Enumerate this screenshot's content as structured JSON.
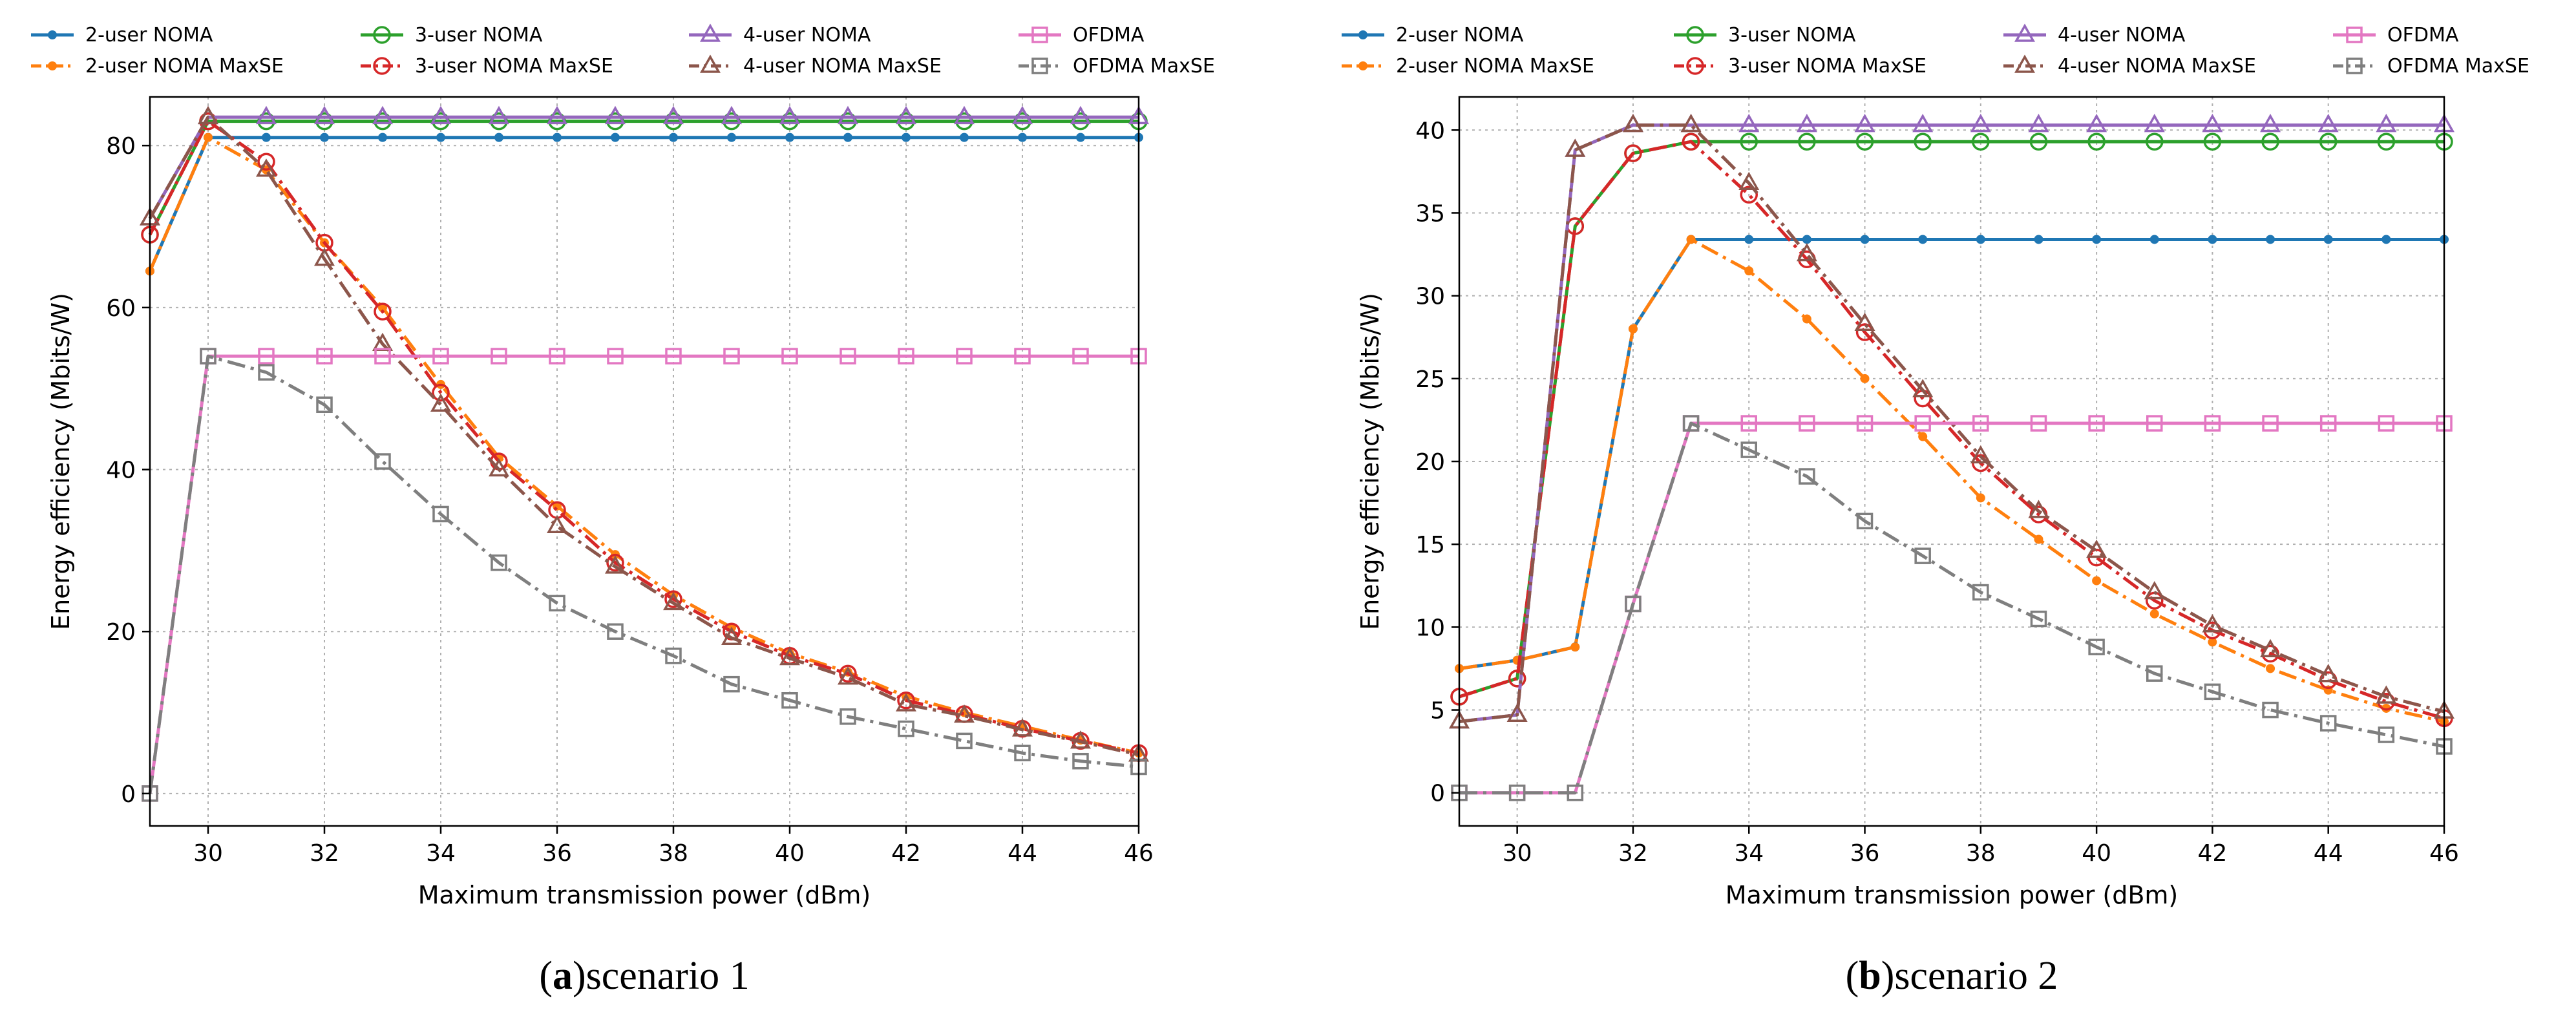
{
  "chart_data": [
    {
      "type": "line",
      "panel_letter": "a",
      "caption_left": "(",
      "caption_right": ")",
      "caption_text": "scenario 1",
      "xlabel": "Maximum transmission power (dBm)",
      "ylabel": "Energy efficiency (Mbits/W)",
      "xlim": [
        29,
        46
      ],
      "ylim": [
        -4,
        86
      ],
      "xticks": [
        30,
        32,
        34,
        36,
        38,
        40,
        42,
        44,
        46
      ],
      "yticks": [
        0,
        20,
        40,
        60,
        80
      ],
      "grid": true,
      "legend_position": "top",
      "x": [
        29,
        30,
        31,
        32,
        33,
        34,
        35,
        36,
        37,
        38,
        39,
        40,
        41,
        42,
        43,
        44,
        45,
        46
      ],
      "series": [
        {
          "name": "2-user NOMA",
          "color": "#1f77b4",
          "style": "solid",
          "marker": "dot",
          "values": [
            64.5,
            81,
            81,
            81,
            81,
            81,
            81,
            81,
            81,
            81,
            81,
            81,
            81,
            81,
            81,
            81,
            81,
            81
          ]
        },
        {
          "name": "2-user NOMA MaxSE",
          "color": "#ff7f0e",
          "style": "dashdot",
          "marker": "dot",
          "values": [
            64.5,
            81,
            77,
            68,
            60,
            50.5,
            41.5,
            35.5,
            29.5,
            24.5,
            20.5,
            17.3,
            15,
            12,
            10,
            8.3,
            6.6,
            5
          ]
        },
        {
          "name": "3-user NOMA",
          "color": "#2ca02c",
          "style": "solid",
          "marker": "circle",
          "values": [
            69,
            83,
            83,
            83,
            83,
            83,
            83,
            83,
            83,
            83,
            83,
            83,
            83,
            83,
            83,
            83,
            83,
            83
          ]
        },
        {
          "name": "3-user NOMA MaxSE",
          "color": "#d62728",
          "style": "dashdot",
          "marker": "circle",
          "values": [
            69,
            83,
            78,
            68,
            59.5,
            49.5,
            41,
            35,
            28.5,
            24,
            20,
            17,
            14.8,
            11.5,
            9.8,
            8,
            6.5,
            5
          ]
        },
        {
          "name": "4-user NOMA",
          "color": "#9467bd",
          "style": "solid",
          "marker": "triangle",
          "values": [
            71,
            83.5,
            83.5,
            83.5,
            83.5,
            83.5,
            83.5,
            83.5,
            83.5,
            83.5,
            83.5,
            83.5,
            83.5,
            83.5,
            83.5,
            83.5,
            83.5,
            83.5
          ]
        },
        {
          "name": "4-user NOMA MaxSE",
          "color": "#8c564b",
          "style": "dashdot",
          "marker": "triangle",
          "values": [
            71,
            83.5,
            77,
            66,
            55.5,
            48,
            40,
            33,
            28,
            23.5,
            19.2,
            16.7,
            14.3,
            11,
            9.6,
            7.9,
            6.4,
            4.8
          ]
        },
        {
          "name": "OFDMA",
          "color": "#e377c2",
          "style": "solid",
          "marker": "square",
          "values": [
            0,
            54,
            54,
            54,
            54,
            54,
            54,
            54,
            54,
            54,
            54,
            54,
            54,
            54,
            54,
            54,
            54,
            54
          ]
        },
        {
          "name": "OFDMA MaxSE",
          "color": "#7f7f7f",
          "style": "dashdot",
          "marker": "square",
          "values": [
            0,
            54,
            52,
            48,
            41,
            34.5,
            28.5,
            23.5,
            20,
            17,
            13.5,
            11.5,
            9.5,
            8,
            6.5,
            5,
            4,
            3.3
          ]
        }
      ]
    },
    {
      "type": "line",
      "panel_letter": "b",
      "caption_left": "(",
      "caption_right": ")",
      "caption_text": "scenario 2",
      "xlabel": "Maximum transmission power (dBm)",
      "ylabel": "Energy efficiency (Mbits/W)",
      "xlim": [
        29,
        46
      ],
      "ylim": [
        -2,
        42
      ],
      "xticks": [
        30,
        32,
        34,
        36,
        38,
        40,
        42,
        44,
        46
      ],
      "yticks": [
        0,
        5,
        10,
        15,
        20,
        25,
        30,
        35,
        40
      ],
      "grid": true,
      "legend_position": "top",
      "x": [
        29,
        30,
        31,
        32,
        33,
        34,
        35,
        36,
        37,
        38,
        39,
        40,
        41,
        42,
        43,
        44,
        45,
        46
      ],
      "series": [
        {
          "name": "2-user NOMA",
          "color": "#1f77b4",
          "style": "solid",
          "marker": "dot",
          "values": [
            7.5,
            8,
            8.8,
            28,
            33.4,
            33.4,
            33.4,
            33.4,
            33.4,
            33.4,
            33.4,
            33.4,
            33.4,
            33.4,
            33.4,
            33.4,
            33.4,
            33.4
          ]
        },
        {
          "name": "2-user NOMA MaxSE",
          "color": "#ff7f0e",
          "style": "dashdot",
          "marker": "dot",
          "values": [
            7.5,
            8,
            8.8,
            28,
            33.4,
            31.5,
            28.6,
            25,
            21.5,
            17.8,
            15.3,
            12.8,
            10.8,
            9.1,
            7.5,
            6.2,
            5.1,
            4.3
          ]
        },
        {
          "name": "3-user NOMA",
          "color": "#2ca02c",
          "style": "solid",
          "marker": "circle",
          "values": [
            5.8,
            6.9,
            34.2,
            38.6,
            39.3,
            39.3,
            39.3,
            39.3,
            39.3,
            39.3,
            39.3,
            39.3,
            39.3,
            39.3,
            39.3,
            39.3,
            39.3,
            39.3
          ]
        },
        {
          "name": "3-user NOMA MaxSE",
          "color": "#d62728",
          "style": "dashdot",
          "marker": "circle",
          "values": [
            5.8,
            6.9,
            34.2,
            38.6,
            39.3,
            36.1,
            32.2,
            27.8,
            23.8,
            19.9,
            16.8,
            14.2,
            11.6,
            9.8,
            8.4,
            6.8,
            5.5,
            4.5
          ]
        },
        {
          "name": "4-user NOMA",
          "color": "#9467bd",
          "style": "solid",
          "marker": "triangle",
          "values": [
            4.3,
            4.7,
            38.8,
            40.3,
            40.3,
            40.3,
            40.3,
            40.3,
            40.3,
            40.3,
            40.3,
            40.3,
            40.3,
            40.3,
            40.3,
            40.3,
            40.3,
            40.3
          ]
        },
        {
          "name": "4-user NOMA MaxSE",
          "color": "#8c564b",
          "style": "dashdot",
          "marker": "triangle",
          "values": [
            4.3,
            4.7,
            38.8,
            40.3,
            40.3,
            36.8,
            32.5,
            28.3,
            24.3,
            20.3,
            17,
            14.6,
            12.1,
            10.1,
            8.6,
            7.1,
            5.8,
            4.9
          ]
        },
        {
          "name": "OFDMA",
          "color": "#e377c2",
          "style": "solid",
          "marker": "square",
          "values": [
            0,
            0,
            0,
            11.4,
            22.3,
            22.3,
            22.3,
            22.3,
            22.3,
            22.3,
            22.3,
            22.3,
            22.3,
            22.3,
            22.3,
            22.3,
            22.3,
            22.3
          ]
        },
        {
          "name": "OFDMA MaxSE",
          "color": "#7f7f7f",
          "style": "dashdot",
          "marker": "square",
          "values": [
            0,
            0,
            0,
            11.4,
            22.3,
            20.7,
            19.1,
            16.4,
            14.3,
            12.1,
            10.5,
            8.8,
            7.2,
            6.1,
            5,
            4.2,
            3.5,
            2.8
          ]
        }
      ]
    }
  ]
}
